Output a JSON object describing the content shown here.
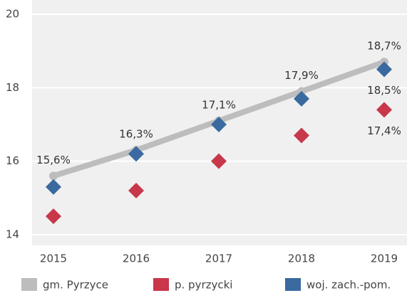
{
  "chart_data": {
    "type": "line",
    "categories": [
      "2015",
      "2016",
      "2017",
      "2018",
      "2019"
    ],
    "series": [
      {
        "name": "gm. Pyrzyce",
        "color": "#bdbdbd",
        "style": "line",
        "values": [
          15.6,
          16.3,
          17.1,
          17.9,
          18.7
        ],
        "value_labels": [
          "15,6%",
          "16,3%",
          "17,1%",
          "17,9%",
          "18,7%"
        ]
      },
      {
        "name": "p. pyrzycki",
        "color": "#c8374a",
        "style": "diamond",
        "values": [
          14.5,
          15.2,
          16.0,
          16.7,
          17.4
        ],
        "value_labels": [
          null,
          null,
          null,
          null,
          "17,4%"
        ]
      },
      {
        "name": "woj. zach.-pom.",
        "color": "#3a6aa0",
        "style": "diamond",
        "values": [
          15.3,
          16.2,
          17.0,
          17.7,
          18.5
        ],
        "value_labels": [
          null,
          null,
          null,
          null,
          "18,5%"
        ]
      }
    ],
    "ylim": [
      14,
      20
    ],
    "yticks": [
      14,
      16,
      18,
      20
    ],
    "grid": true
  }
}
